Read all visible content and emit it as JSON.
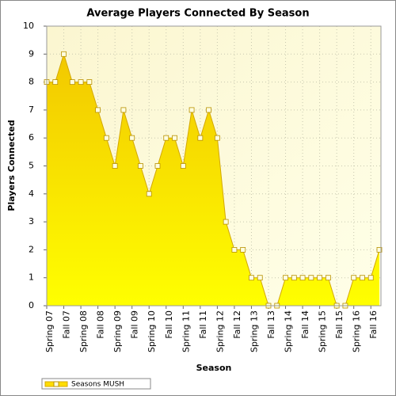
{
  "chart_data": {
    "type": "area",
    "title": "Average Players Connected By Season",
    "x_label": "Season",
    "y_label": "Players Connected",
    "categories": [
      "Spring 07",
      null,
      "Fall 07",
      null,
      "Spring 08",
      null,
      "Fall 08",
      null,
      "Spring 09",
      null,
      "Fall 09",
      null,
      "Spring 10",
      null,
      "Fall 10",
      null,
      "Spring 11",
      null,
      "Fall 11",
      null,
      "Spring 12",
      null,
      "Fall 12",
      null,
      "Spring 13",
      null,
      "Fall 13",
      null,
      "Spring 14",
      null,
      "Fall 14",
      null,
      "Spring 15",
      null,
      "Fall 15",
      null,
      "Spring 16",
      null,
      "Fall 16",
      null
    ],
    "series": [
      {
        "name": "Seasons MUSH",
        "color": "#ffdd00",
        "values": [
          8,
          8,
          9,
          8,
          8,
          8,
          7,
          6,
          5,
          7,
          6,
          5,
          4,
          5,
          6,
          6,
          5,
          7,
          6,
          7,
          6,
          3,
          2,
          2,
          1,
          1,
          0,
          0,
          1,
          1,
          1,
          1,
          1,
          1,
          0,
          0,
          1,
          1,
          1,
          2
        ]
      }
    ],
    "ylim": [
      0,
      10
    ],
    "yticks": [
      0,
      1,
      2,
      3,
      4,
      5,
      6,
      7,
      8,
      9,
      10
    ],
    "grid": true,
    "legend": "bottom-left"
  }
}
